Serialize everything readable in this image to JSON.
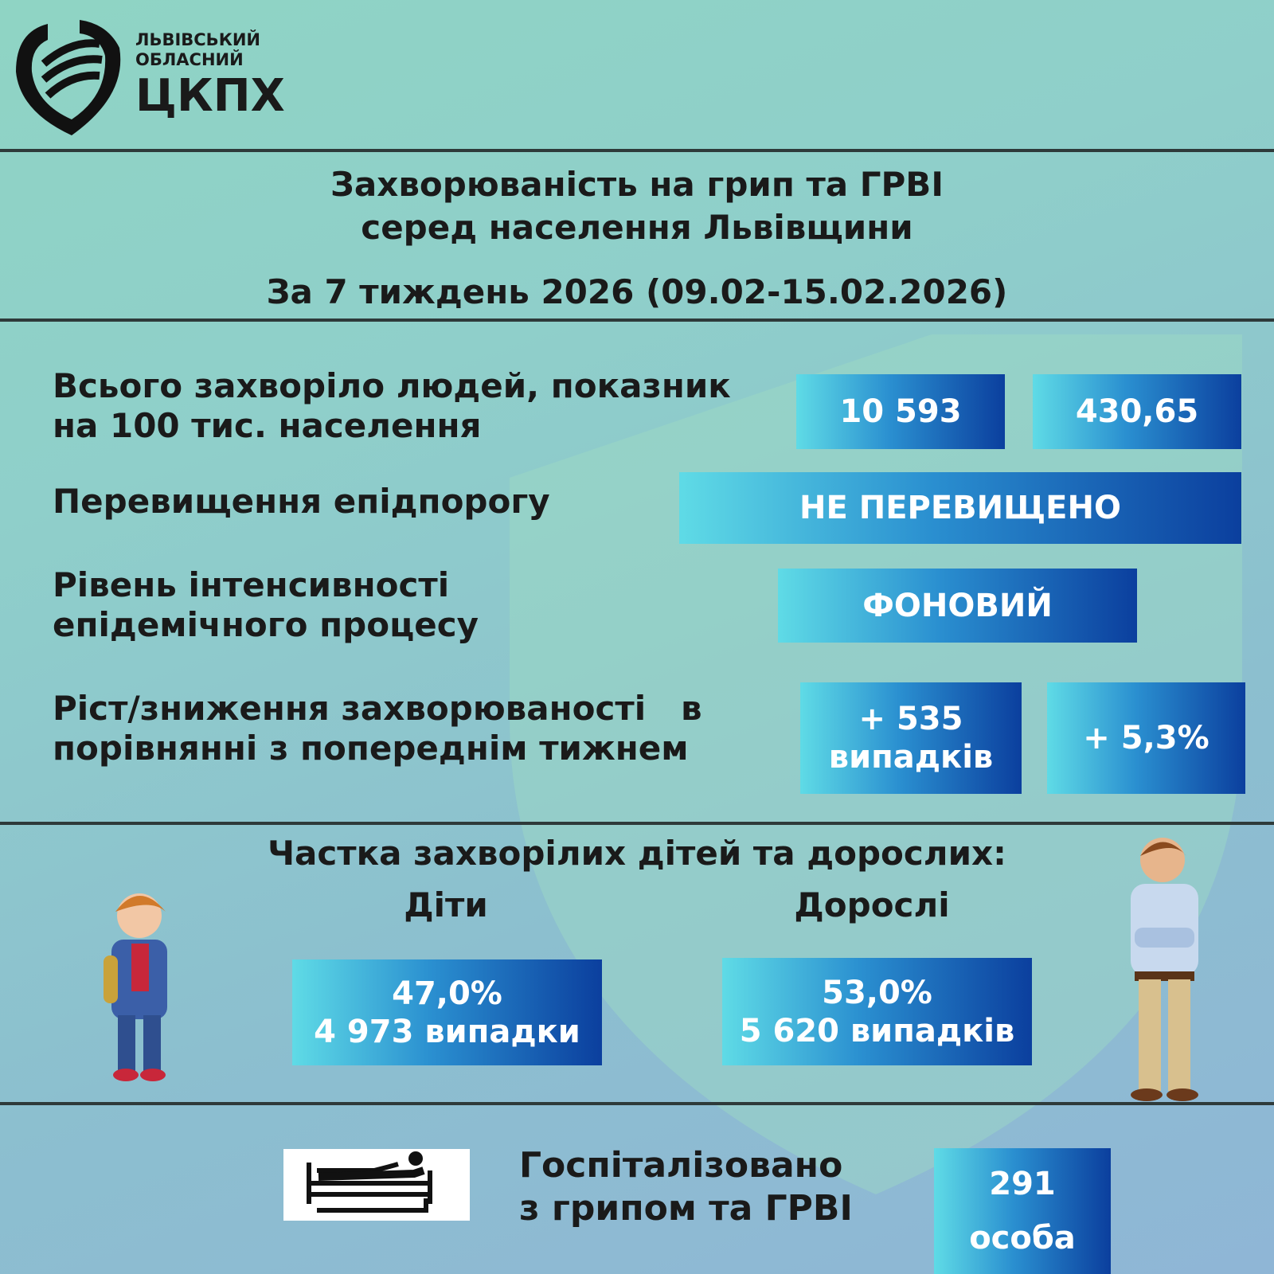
{
  "logo": {
    "line1": "ЛЬВІВСЬКИЙ",
    "line2": "ОБЛАСНИЙ",
    "line3": "ЦКПХ"
  },
  "header": {
    "title_lines": [
      "Захворюваність на грип та ГРВІ",
      "серед населення Львівщини"
    ],
    "period": "За 7 тиждень 2026 (09.02-15.02.2026)"
  },
  "indicators": [
    {
      "label_lines": [
        "Всього захворіло людей, показник",
        "на 100 тис. населення"
      ],
      "boxes": [
        [
          "10 593"
        ],
        [
          "430,65"
        ]
      ]
    },
    {
      "label_lines": [
        "Перевищення епідпорогу"
      ],
      "boxes": [
        [
          "НЕ ПЕРЕВИЩЕНО"
        ]
      ]
    },
    {
      "label_lines": [
        "Рівень інтенсивності",
        "епідемічного процесу"
      ],
      "boxes": [
        [
          "ФОНОВИЙ"
        ]
      ]
    },
    {
      "label_lines": [
        "Ріст/зниження захворюваності   в",
        "порівнянні з попереднім тижнем"
      ],
      "boxes": [
        [
          "+ 535",
          "випадків"
        ],
        [
          "+ 5,3%"
        ]
      ]
    }
  ],
  "shares": {
    "title": "Частка захворілих дітей та дорослих:",
    "groups": [
      {
        "name": "Діти",
        "lines": [
          "47,0%",
          "4 973 випадки"
        ]
      },
      {
        "name": "Дорослі",
        "lines": [
          "53,0%",
          "5 620 випадків"
        ]
      }
    ]
  },
  "hospitalized": {
    "label_lines": [
      "Госпіталізовано",
      "з грипом та ГРВІ"
    ],
    "value_lines": [
      "291",
      "особа"
    ]
  }
}
